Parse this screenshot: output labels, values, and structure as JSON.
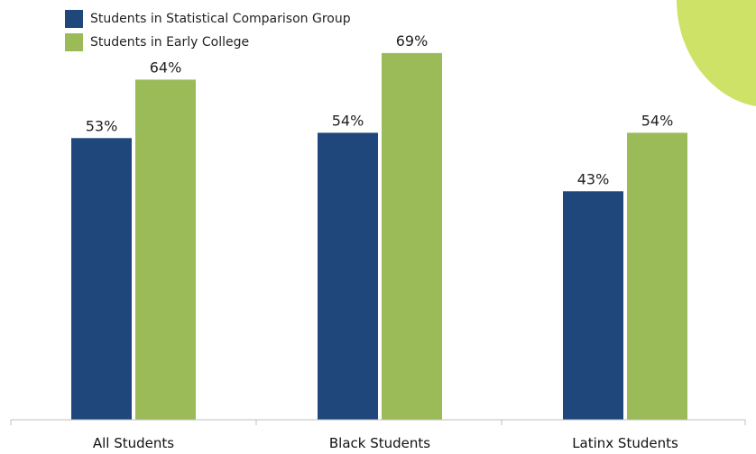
{
  "chart_data": {
    "type": "bar",
    "categories": [
      "All Students",
      "Black Students",
      "Latinx Students"
    ],
    "series": [
      {
        "name": "Students in Statistical Comparison Group",
        "values": [
          53,
          54,
          43
        ],
        "labels": [
          "53%",
          "54%",
          "43%"
        ],
        "color": "#1f477c"
      },
      {
        "name": "Students in Early College",
        "values": [
          64,
          69,
          54
        ],
        "labels": [
          "64%",
          "69%",
          "54%"
        ],
        "color": "#9bbb59"
      }
    ],
    "ylim": [
      0,
      100
    ],
    "grid": false,
    "legend_position": "top-left"
  },
  "decoration": {
    "accent_color": "#cde266"
  }
}
